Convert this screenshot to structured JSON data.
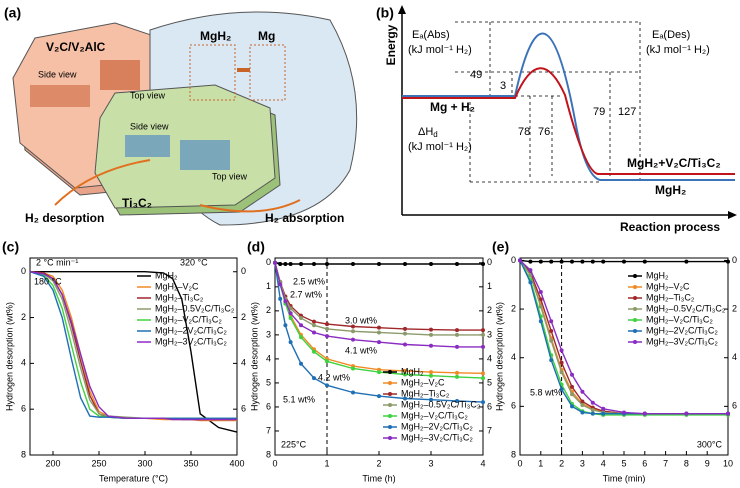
{
  "panel_a": {
    "tag": "(a)",
    "labels": [
      "V₂C/V₂AlC",
      "Side view",
      "Top view",
      "MgH₂",
      "Mg",
      "Side view",
      "Top view",
      "Ti₃C₂",
      "H₂ desorption",
      "H₂ absorption"
    ]
  },
  "panel_b": {
    "tag": "(b)",
    "energy": "Energy",
    "ea_abs": "Eₐ(Abs)",
    "ea_abs_unit": "(kJ mol⁻¹ H₂)",
    "ea_des": "Eₐ(Des)",
    "ea_des_unit": "(kJ mol⁻¹ H₂)",
    "v49": "49",
    "v3": "3",
    "v78": "78",
    "v76": "76",
    "v79": "79",
    "v127": "127",
    "reactant": "Mg + H₂",
    "delta_h": "ΔH",
    "delta_h_sub": "d",
    "delta_h_unit": "(kJ mol⁻¹ H₂)",
    "product_red": "MgH₂+V₂C/Ti₃C₂",
    "product_blue": "MgH₂",
    "xlabel": "Reaction process"
  },
  "chart_data": [
    {
      "type": "line",
      "tag": "(c)",
      "xlabel": "Temperature (°C)",
      "ylabel": "Hydrogen desorption (wt%)",
      "xlim": [
        175,
        400
      ],
      "xticks": [
        200,
        250,
        300,
        350,
        400
      ],
      "ylim": [
        8,
        -0.6
      ],
      "yticks": [
        0,
        2,
        4,
        6,
        8
      ],
      "y2lim": [
        8,
        -0.6
      ],
      "y2ticks": [
        0,
        2,
        4,
        6
      ],
      "legend": "upper right",
      "markers": false,
      "annotations": [
        "2 °C min⁻¹",
        "320 °C",
        "180 °C"
      ],
      "x": [
        175,
        190,
        200,
        210,
        220,
        230,
        240,
        250,
        260,
        280,
        300,
        320,
        330,
        340,
        350,
        360,
        380,
        400
      ],
      "series": [
        {
          "name": "MgH₂",
          "color": "#000000",
          "values": [
            0,
            0,
            0,
            0,
            0,
            0,
            0,
            0,
            0,
            0,
            0,
            0.05,
            0.3,
            1.2,
            3.5,
            6.2,
            6.8,
            7.0
          ]
        },
        {
          "name": "MgH₂–V₂C",
          "color": "#f08a24",
          "values": [
            0,
            0.05,
            0.2,
            0.8,
            2.0,
            3.6,
            5.2,
            6.1,
            6.3,
            6.4,
            6.4,
            6.45,
            6.45,
            6.45,
            6.45,
            6.5,
            6.5,
            6.5
          ]
        },
        {
          "name": "MgH₂–Ti₃C₂",
          "color": "#a0282a",
          "values": [
            0,
            0.05,
            0.3,
            1.0,
            2.3,
            3.9,
            5.4,
            6.2,
            6.35,
            6.4,
            6.4,
            6.4,
            6.4,
            6.45,
            6.45,
            6.45,
            6.45,
            6.45
          ]
        },
        {
          "name": "MgH₂–0.5V₂C/Ti₃C₂",
          "color": "#8c9a6a",
          "values": [
            0,
            0.1,
            0.4,
            1.2,
            2.6,
            4.2,
            5.6,
            6.2,
            6.3,
            6.35,
            6.4,
            6.4,
            6.4,
            6.4,
            6.4,
            6.4,
            6.45,
            6.45
          ]
        },
        {
          "name": "MgH₂–V₂C/Ti₃C₂",
          "color": "#3fd23f",
          "values": [
            0,
            0.15,
            0.6,
            1.6,
            3.2,
            4.8,
            6.0,
            6.3,
            6.35,
            6.4,
            6.4,
            6.4,
            6.4,
            6.4,
            6.4,
            6.4,
            6.4,
            6.4
          ]
        },
        {
          "name": "MgH₂–2V₂C/Ti₃C₂",
          "color": "#1f6fb5",
          "values": [
            0,
            0.2,
            0.8,
            2.0,
            3.8,
            5.5,
            6.3,
            6.35,
            6.35,
            6.4,
            6.4,
            6.4,
            6.4,
            6.4,
            6.4,
            6.4,
            6.4,
            6.4
          ]
        },
        {
          "name": "MgH₂–3V₂C/Ti₃C₂",
          "color": "#8a2bc2",
          "values": [
            0,
            0.1,
            0.3,
            1.0,
            2.2,
            3.6,
            5.0,
            5.9,
            6.3,
            6.4,
            6.4,
            6.4,
            6.45,
            6.45,
            6.45,
            6.45,
            6.45,
            6.45
          ]
        }
      ]
    },
    {
      "type": "line",
      "tag": "(d)",
      "xlabel": "Time (h)",
      "ylabel": "Hydrogen desorption (wt%)",
      "xlim": [
        0,
        4
      ],
      "xticks": [
        0,
        1,
        2,
        3,
        4
      ],
      "ylim": [
        8,
        -0.2
      ],
      "yticks": [
        0,
        1,
        2,
        3,
        4,
        5,
        6,
        7,
        8
      ],
      "y2lim": [
        8,
        -0.2
      ],
      "y2ticks": [
        0,
        1,
        2,
        3,
        4,
        5,
        6,
        7
      ],
      "legend": "lower right",
      "markers": true,
      "reference_x": 1,
      "annotations": [
        "2.5 wt%",
        "2.7 wt%",
        "3.0 wt%",
        "4.1 wt%",
        "4.2 wt%",
        "5.1 wt%",
        "225°C"
      ],
      "x": [
        0,
        0.1,
        0.2,
        0.3,
        0.5,
        0.75,
        1,
        1.5,
        2,
        2.5,
        3,
        3.5,
        4
      ],
      "series": [
        {
          "name": "MgH₂",
          "color": "#000000",
          "values": [
            0,
            0.05,
            0.05,
            0.05,
            0.05,
            0.05,
            0.05,
            0.05,
            0.05,
            0.05,
            0.05,
            0.05,
            0.05
          ]
        },
        {
          "name": "MgH₂–V₂C",
          "color": "#f08a24",
          "values": [
            0,
            0.8,
            1.6,
            2.2,
            3.0,
            3.6,
            4.0,
            4.3,
            4.45,
            4.5,
            4.55,
            4.58,
            4.6
          ]
        },
        {
          "name": "MgH₂–Ti₃C₂",
          "color": "#a0282a",
          "values": [
            0,
            0.8,
            1.4,
            1.8,
            2.2,
            2.45,
            2.55,
            2.65,
            2.7,
            2.75,
            2.78,
            2.8,
            2.8
          ]
        },
        {
          "name": "MgH₂–0.5V₂C/Ti₃C₂",
          "color": "#8c9a6a",
          "values": [
            0,
            0.8,
            1.5,
            1.9,
            2.3,
            2.6,
            2.75,
            2.85,
            2.9,
            2.95,
            3.0,
            3.0,
            3.0
          ]
        },
        {
          "name": "MgH₂–V₂C/Ti₃C₂",
          "color": "#3fd23f",
          "values": [
            0,
            0.9,
            1.7,
            2.3,
            3.1,
            3.7,
            4.1,
            4.4,
            4.55,
            4.65,
            4.7,
            4.75,
            4.8
          ]
        },
        {
          "name": "MgH₂–2V₂C/Ti₃C₂",
          "color": "#1f6fb5",
          "values": [
            0,
            1.5,
            2.6,
            3.3,
            4.2,
            4.8,
            5.1,
            5.4,
            5.55,
            5.65,
            5.7,
            5.75,
            5.8
          ]
        },
        {
          "name": "MgH₂–3V₂C/Ti₃C₂",
          "color": "#8a2bc2",
          "values": [
            0,
            0.9,
            1.6,
            2.1,
            2.6,
            2.9,
            3.05,
            3.2,
            3.3,
            3.4,
            3.45,
            3.5,
            3.5
          ]
        }
      ]
    },
    {
      "type": "line",
      "tag": "(e)",
      "xlabel": "Time (min)",
      "ylabel": "Hydrogen desorption (wt%)",
      "xlim": [
        0,
        10
      ],
      "xticks": [
        0,
        1,
        2,
        3,
        4,
        5,
        6,
        7,
        8,
        9,
        10
      ],
      "ylim": [
        8,
        -0.1
      ],
      "yticks": [
        0,
        2,
        4,
        6,
        8
      ],
      "y2lim": [
        8,
        -0.1
      ],
      "y2ticks": [
        0,
        2,
        4,
        6
      ],
      "legend": "upper right",
      "markers": true,
      "reference_x": 2,
      "annotations": [
        "5.8 wt%",
        "300°C"
      ],
      "x": [
        0,
        0.5,
        1,
        1.5,
        2,
        2.5,
        3,
        3.5,
        4,
        5,
        6,
        8,
        10
      ],
      "series": [
        {
          "name": "MgH₂",
          "color": "#000000",
          "values": [
            0,
            0.05,
            0.05,
            0.05,
            0.05,
            0.05,
            0.05,
            0.05,
            0.05,
            0.05,
            0.05,
            0.05,
            0.05
          ]
        },
        {
          "name": "MgH₂–V₂C",
          "color": "#f08a24",
          "values": [
            0,
            0.6,
            1.8,
            3.2,
            4.5,
            5.4,
            5.9,
            6.1,
            6.2,
            6.3,
            6.3,
            6.3,
            6.35
          ]
        },
        {
          "name": "MgH₂–Ti₃C₂",
          "color": "#a0282a",
          "values": [
            0,
            0.5,
            1.6,
            2.9,
            4.2,
            5.2,
            5.8,
            6.05,
            6.2,
            6.3,
            6.3,
            6.3,
            6.3
          ]
        },
        {
          "name": "MgH₂–0.5V₂C/Ti₃C₂",
          "color": "#8c9a6a",
          "values": [
            0,
            0.6,
            1.9,
            3.3,
            4.6,
            5.5,
            5.95,
            6.15,
            6.25,
            6.3,
            6.3,
            6.3,
            6.3
          ]
        },
        {
          "name": "MgH₂–V₂C/Ti₃C₂",
          "color": "#3fd23f",
          "values": [
            0,
            0.8,
            2.3,
            3.9,
            5.1,
            5.9,
            6.2,
            6.3,
            6.35,
            6.35,
            6.35,
            6.35,
            6.35
          ]
        },
        {
          "name": "MgH₂–2V₂C/Ti₃C₂",
          "color": "#1f6fb5",
          "values": [
            0,
            0.9,
            2.5,
            4.1,
            5.3,
            6.0,
            6.25,
            6.3,
            6.3,
            6.3,
            6.3,
            6.3,
            6.3
          ]
        },
        {
          "name": "MgH₂–3V₂C/Ti₃C₂",
          "color": "#8a2bc2",
          "values": [
            0,
            0.4,
            1.3,
            2.5,
            3.7,
            4.7,
            5.4,
            5.85,
            6.1,
            6.25,
            6.3,
            6.3,
            6.3
          ]
        }
      ]
    }
  ]
}
